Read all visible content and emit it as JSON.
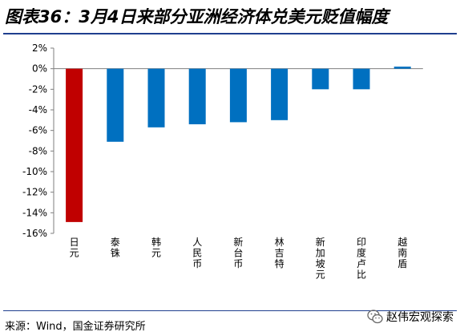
{
  "header": {
    "title": "图表36：3月4日来部分亚洲经济体兑美元贬值幅度"
  },
  "footer": {
    "source": "来源：Wind，国金证券研究所",
    "watermark": "赵伟宏观探索",
    "watermark_icon": "wechat-icon"
  },
  "chart_data": {
    "type": "bar",
    "categories": [
      "日元",
      "泰铢",
      "韩元",
      "人民币",
      "新台币",
      "林吉特",
      "新加坡元",
      "印度卢比",
      "越南盾"
    ],
    "values": [
      -14.9,
      -7.1,
      -5.7,
      -5.4,
      -5.2,
      -5.0,
      -2.0,
      -2.0,
      0.2
    ],
    "bar_colors": [
      "#c00000",
      "#0070c0",
      "#0070c0",
      "#0070c0",
      "#0070c0",
      "#0070c0",
      "#0070c0",
      "#0070c0",
      "#0070c0"
    ],
    "yticks": [
      "2%",
      "0%",
      "-2%",
      "-4%",
      "-6%",
      "-8%",
      "-10%",
      "-12%",
      "-14%",
      "-16%"
    ],
    "ylim": [
      -16,
      2
    ],
    "ylabel": "",
    "xlabel": "",
    "grid": false,
    "legend": "none"
  }
}
